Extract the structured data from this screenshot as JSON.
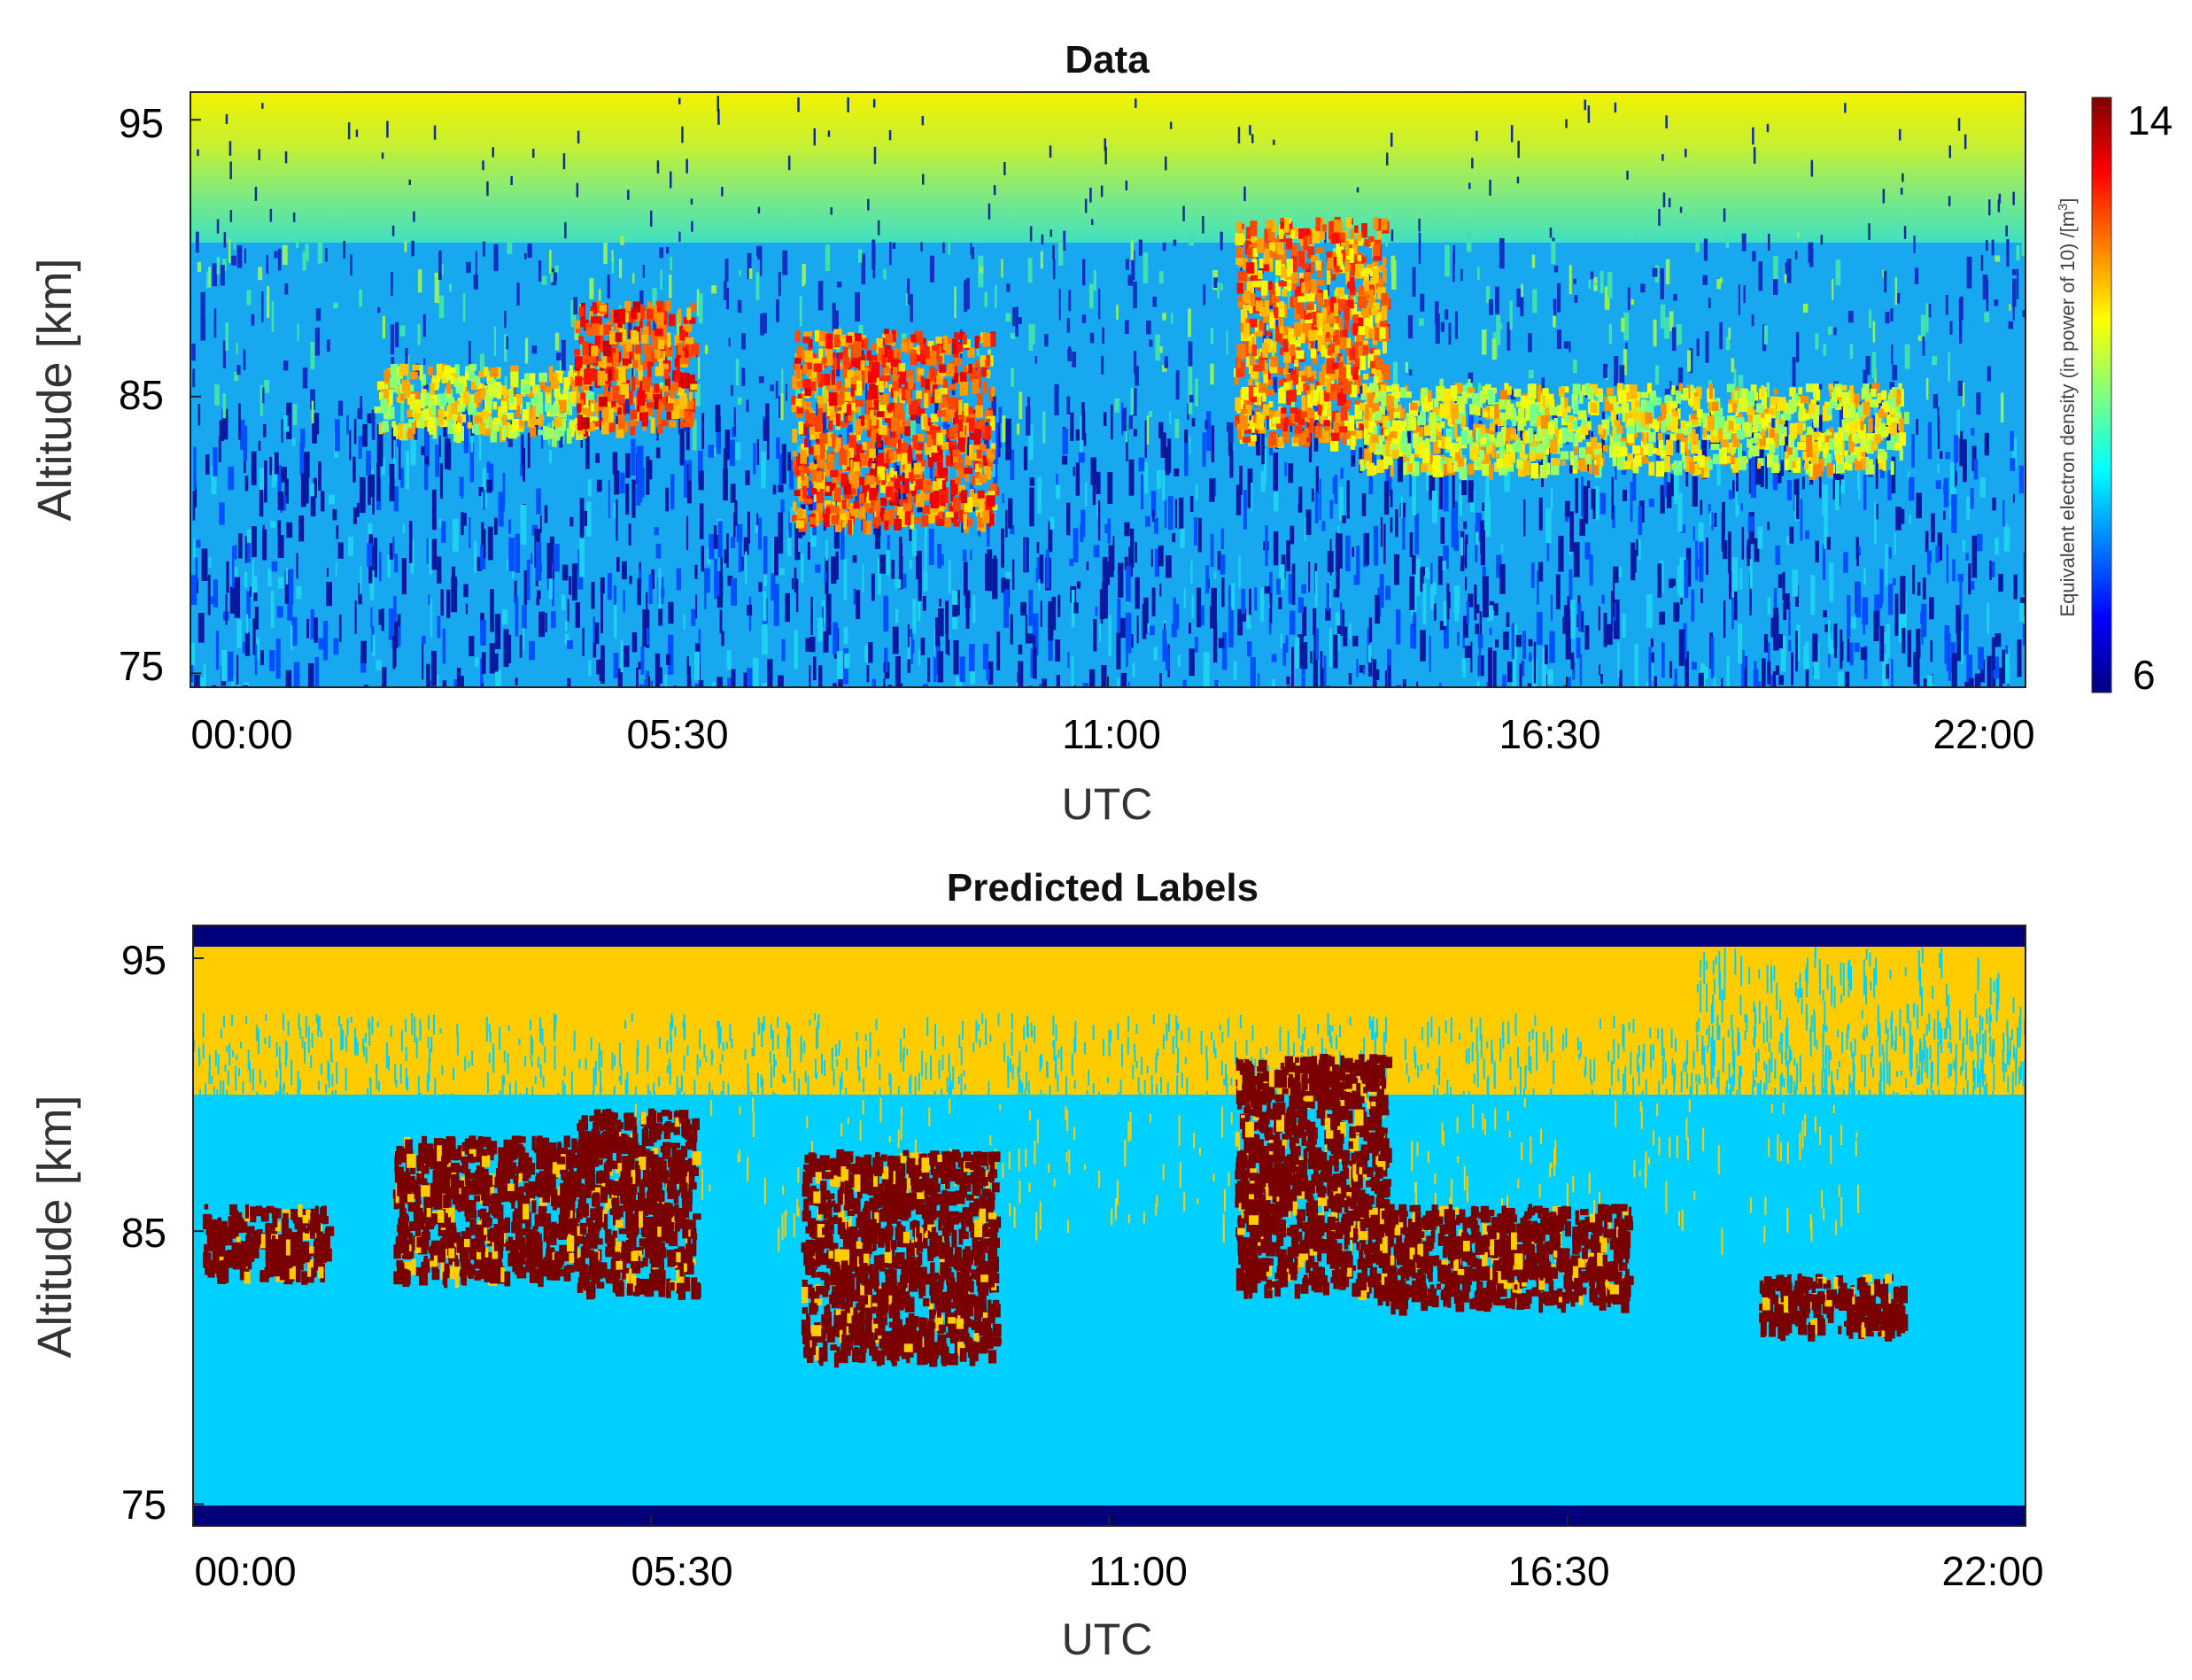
{
  "chart_data": [
    {
      "type": "heatmap",
      "title": "Data",
      "xlabel": "UTC",
      "ylabel": "Altitude [km]",
      "x_ticks": [
        "00:00",
        "05:30",
        "11:00",
        "16:30",
        "22:00"
      ],
      "xlim_hours": [
        0,
        22
      ],
      "y_ticks": [
        "95",
        "85",
        "75"
      ],
      "ylim_km": [
        74.5,
        96
      ],
      "colormap": "jet",
      "colorbar": {
        "label": "Equivalent electron density (in power of 10) /[m",
        "label_superscript": "3",
        "label_close": "]",
        "min": 6,
        "max": 14,
        "tick_labels": [
          "14",
          "6"
        ]
      },
      "layers": [
        {
          "name": "upper background",
          "alt_km": [
            90,
            96
          ],
          "log10_density": 12
        },
        {
          "name": "lower background",
          "alt_km": [
            74.5,
            84
          ],
          "log10_density": 8
        }
      ],
      "features": [
        {
          "t": [
            2.2,
            4.8
          ],
          "alt_km": [
            83.8,
            86.2
          ],
          "log10_density": 12
        },
        {
          "t": [
            4.6,
            6.0
          ],
          "alt_km": [
            84,
            88.5
          ],
          "log10_density": 13.5
        },
        {
          "t": [
            7.2,
            9.6
          ],
          "alt_km": [
            80.5,
            87.5
          ],
          "log10_density": 13.3
        },
        {
          "t": [
            12.5,
            14.3
          ],
          "alt_km": [
            83.5,
            91.5
          ],
          "log10_density": 13
        },
        {
          "t": [
            14.0,
            20.5
          ],
          "alt_km": [
            82.5,
            85.5
          ],
          "log10_density": 12
        }
      ]
    },
    {
      "type": "heatmap",
      "title": "Predicted Labels",
      "xlabel": "UTC",
      "ylabel": "Altitude [km]",
      "x_ticks": [
        "00:00",
        "05:30",
        "11:00",
        "16:30",
        "22:00"
      ],
      "xlim_hours": [
        0,
        22
      ],
      "y_ticks": [
        "95",
        "85",
        "75"
      ],
      "ylim_km": [
        74.2,
        96.2
      ],
      "classes": {
        "border": "#00007a",
        "background_upper": "#ffcc00",
        "background_lower": "#00d0ff",
        "pmse": "#7a0000"
      },
      "layers": [
        {
          "class": "background_upper",
          "alt_km": [
            89.9,
            95.4
          ]
        },
        {
          "class": "background_lower",
          "alt_km": [
            75,
            89.9
          ]
        }
      ],
      "pmse_regions": [
        {
          "t": [
            0.1,
            1.6
          ],
          "alt_km": [
            83.5,
            86
          ]
        },
        {
          "t": [
            2.4,
            4.6
          ],
          "alt_km": [
            83.5,
            88.5
          ]
        },
        {
          "t": [
            4.6,
            6.0
          ],
          "alt_km": [
            83,
            89.5
          ]
        },
        {
          "t": [
            7.3,
            9.6
          ],
          "alt_km": [
            80.5,
            88
          ]
        },
        {
          "t": [
            12.5,
            14.3
          ],
          "alt_km": [
            83,
            91.5
          ]
        },
        {
          "t": [
            14.2,
            17.2
          ],
          "alt_km": [
            82.5,
            86
          ]
        },
        {
          "t": [
            18.8,
            20.5
          ],
          "alt_km": [
            81.5,
            83.5
          ]
        }
      ]
    }
  ]
}
